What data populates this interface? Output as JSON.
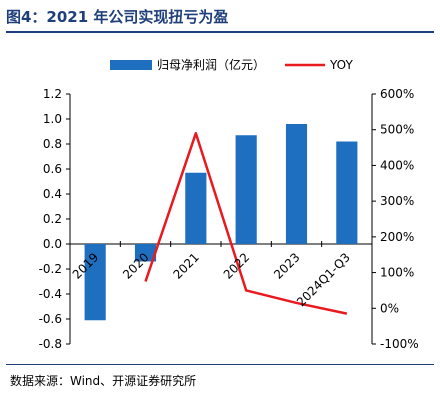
{
  "title": "图4：2021 年公司实现扭亏为盈",
  "source": "数据来源：Wind、开源证券研究所",
  "colors": {
    "bar": "#1f6fc0",
    "line": "#e8191f",
    "title": "#1f3f7a"
  },
  "chart_data": {
    "type": "bar+line",
    "title": "图4：2021 年公司实现扭亏为盈",
    "categories": [
      "2019",
      "2020",
      "2021",
      "2022",
      "2023",
      "2024Q1-Q3"
    ],
    "series": [
      {
        "name": "归母净利润（亿元）",
        "type": "bar",
        "axis": "left",
        "values": [
          -0.61,
          -0.14,
          0.57,
          0.87,
          0.96,
          0.82
        ]
      },
      {
        "name": "YOY",
        "type": "line",
        "axis": "right",
        "values": [
          null,
          75,
          490,
          50,
          15,
          -15
        ]
      }
    ],
    "y_left": {
      "lim": [
        -0.8,
        1.2
      ],
      "ticks": [
        "1.2",
        "1.0",
        "0.8",
        "0.6",
        "0.4",
        "0.2",
        "0.0",
        "-0.2",
        "-0.4",
        "-0.6",
        "-0.8"
      ]
    },
    "y_right": {
      "lim": [
        -100,
        600
      ],
      "ticks": [
        "600%",
        "500%",
        "400%",
        "300%",
        "200%",
        "100%",
        "0%",
        "-100%"
      ]
    },
    "legend_position": "top-center",
    "grid": false
  }
}
